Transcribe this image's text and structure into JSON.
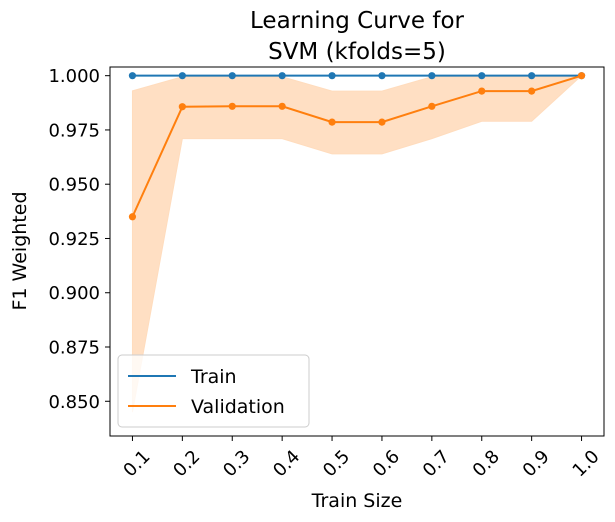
{
  "chart_data": {
    "type": "line",
    "title_lines": [
      "Learning Curve for",
      "SVM (kfolds=5)"
    ],
    "xlabel": "Train Size",
    "ylabel": "F1 Weighted",
    "x": [
      0.1,
      0.2,
      0.3,
      0.4,
      0.5,
      0.6,
      0.7,
      0.8,
      0.9,
      1.0
    ],
    "x_tick_labels": [
      "0.1",
      "0.2",
      "0.3",
      "0.4",
      "0.5",
      "0.6",
      "0.7",
      "0.8",
      "0.9",
      "1.0"
    ],
    "y_ticks": [
      0.85,
      0.875,
      0.9,
      0.925,
      0.95,
      0.975,
      1.0
    ],
    "y_tick_labels": [
      "0.850",
      "0.875",
      "0.900",
      "0.925",
      "0.950",
      "0.975",
      "1.000"
    ],
    "xlim": [
      0.055,
      1.045
    ],
    "ylim": [
      0.834,
      1.004
    ],
    "grid": false,
    "legend_position": "bottom-left",
    "series": [
      {
        "name": "Train",
        "color": "#1f77b4",
        "values": [
          1.0,
          1.0,
          1.0,
          1.0,
          1.0,
          1.0,
          1.0,
          1.0,
          1.0,
          1.0
        ]
      },
      {
        "name": "Validation",
        "color": "#ff7f0e",
        "band_color": "#ffdcbd",
        "values": [
          0.935,
          0.9857,
          0.9859,
          0.9859,
          0.9786,
          0.9786,
          0.9859,
          0.9929,
          0.9929,
          1.0
        ],
        "band_lower": [
          0.845,
          0.971,
          0.971,
          0.971,
          0.964,
          0.964,
          0.971,
          0.979,
          0.979,
          1.0
        ],
        "band_upper": [
          0.993,
          0.9995,
          0.9995,
          0.9995,
          0.9929,
          0.9929,
          0.9995,
          1.0,
          1.0,
          1.0
        ]
      }
    ]
  }
}
